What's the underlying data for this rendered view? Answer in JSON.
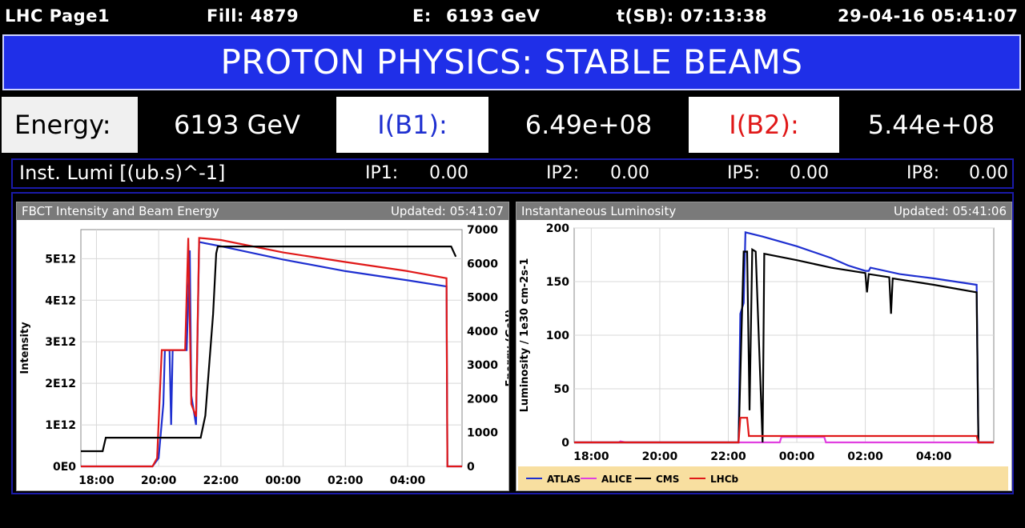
{
  "header": {
    "page": "LHC Page1",
    "fill": "Fill: 4879",
    "energy_label": "E:",
    "energy_value": "6193 GeV",
    "tsb": "t(SB): 07:13:38",
    "datetime": "29-04-16 05:41:07"
  },
  "banner": {
    "text": "PROTON PHYSICS: STABLE BEAMS"
  },
  "beam_row": {
    "energy_label": "Energy:",
    "energy_value": "6193 GeV",
    "ib1_label": "I(B1):",
    "ib1_value": "6.49e+08",
    "ib2_label": "I(B2):",
    "ib2_value": "5.44e+08"
  },
  "lumi_row": {
    "label": "Inst. Lumi [(ub.s)^-1]",
    "ip1_label": "IP1:",
    "ip1_value": "0.00",
    "ip2_label": "IP2:",
    "ip2_value": "0.00",
    "ip5_label": "IP5:",
    "ip5_value": "0.00",
    "ip8_label": "IP8:",
    "ip8_value": "0.00"
  },
  "colors": {
    "b1": "#1e2fd0",
    "b2": "#e01818",
    "energy": "#000000",
    "atlas": "#1e2fd0",
    "alice": "#e040e0",
    "cms": "#000000",
    "lhcb": "#e01818",
    "banner": "#1f2fe8",
    "legend_bg": "#f8dfa0"
  },
  "chart_data": [
    {
      "type": "line",
      "panel_title": "FBCT Intensity and Beam Energy",
      "updated": "Updated: 05:41:07",
      "ylabel": "Intensity",
      "y2label": "Energy (GeV)",
      "x_ticks": [
        "18:00",
        "20:00",
        "22:00",
        "00:00",
        "02:00",
        "04:00"
      ],
      "x_tick_hours": [
        18,
        20,
        22,
        24,
        26,
        28
      ],
      "xlim_hours": [
        17.5,
        29.75
      ],
      "y_ticks": [
        "0E0",
        "1E12",
        "2E12",
        "3E12",
        "4E12",
        "5E12"
      ],
      "ylim": [
        0,
        5700000000000.0
      ],
      "y2_ticks": [
        "0",
        "1000",
        "2000",
        "3000",
        "4000",
        "5000",
        "6000",
        "7000"
      ],
      "y2lim": [
        0,
        7000
      ],
      "series": [
        {
          "name": "B1",
          "axis": "left",
          "points": [
            [
              17.5,
              0
            ],
            [
              19.8,
              0
            ],
            [
              20.0,
              200000000000.0
            ],
            [
              20.15,
              1500000000000.0
            ],
            [
              20.2,
              2800000000000.0
            ],
            [
              20.35,
              2800000000000.0
            ],
            [
              20.4,
              1000000000000.0
            ],
            [
              20.45,
              2800000000000.0
            ],
            [
              20.9,
              2800000000000.0
            ],
            [
              21.0,
              5200000000000.0
            ],
            [
              21.05,
              1700000000000.0
            ],
            [
              21.2,
              1000000000000.0
            ],
            [
              21.3,
              5400000000000.0
            ],
            [
              22.0,
              5300000000000.0
            ],
            [
              24.0,
              4980000000000.0
            ],
            [
              26.0,
              4700000000000.0
            ],
            [
              28.0,
              4480000000000.0
            ],
            [
              29.25,
              4330000000000.0
            ],
            [
              29.28,
              0
            ],
            [
              29.75,
              0
            ]
          ]
        },
        {
          "name": "B2",
          "axis": "left",
          "points": [
            [
              17.5,
              0
            ],
            [
              19.8,
              0
            ],
            [
              19.95,
              200000000000.0
            ],
            [
              20.1,
              2800000000000.0
            ],
            [
              20.85,
              2800000000000.0
            ],
            [
              20.95,
              5500000000000.0
            ],
            [
              21.05,
              1500000000000.0
            ],
            [
              21.2,
              1200000000000.0
            ],
            [
              21.3,
              5500000000000.0
            ],
            [
              22.0,
              5450000000000.0
            ],
            [
              24.0,
              5150000000000.0
            ],
            [
              26.0,
              4920000000000.0
            ],
            [
              28.0,
              4700000000000.0
            ],
            [
              29.25,
              4530000000000.0
            ],
            [
              29.28,
              0
            ],
            [
              29.75,
              0
            ]
          ]
        },
        {
          "name": "Energy",
          "axis": "right",
          "points": [
            [
              17.5,
              450
            ],
            [
              18.2,
              450
            ],
            [
              18.3,
              850
            ],
            [
              21.35,
              850
            ],
            [
              21.5,
              1500
            ],
            [
              21.75,
              4500
            ],
            [
              21.85,
              6300
            ],
            [
              21.9,
              6500
            ],
            [
              29.4,
              6500
            ],
            [
              29.55,
              6200
            ]
          ]
        }
      ]
    },
    {
      "type": "line",
      "panel_title": "Instantaneous Luminosity",
      "updated": "Updated: 05:41:06",
      "ylabel": "Luminosity / 1e30 cm-2s-1",
      "x_ticks": [
        "18:00",
        "20:00",
        "22:00",
        "00:00",
        "02:00",
        "04:00"
      ],
      "x_tick_hours": [
        18,
        20,
        22,
        24,
        26,
        28
      ],
      "xlim_hours": [
        17.5,
        29.75
      ],
      "y_ticks": [
        "0",
        "50",
        "100",
        "150",
        "200"
      ],
      "ylim": [
        0,
        200
      ],
      "legend": [
        "ATLAS",
        "ALICE",
        "CMS",
        "LHCb"
      ],
      "series": [
        {
          "name": "ATLAS",
          "points": [
            [
              17.5,
              0
            ],
            [
              22.3,
              0
            ],
            [
              22.35,
              120
            ],
            [
              22.45,
              130
            ],
            [
              22.5,
              196
            ],
            [
              23.0,
              192
            ],
            [
              24.0,
              183
            ],
            [
              25.0,
              172
            ],
            [
              25.5,
              165
            ],
            [
              26.0,
              160
            ],
            [
              26.1,
              160
            ],
            [
              26.15,
              163
            ],
            [
              27.0,
              157
            ],
            [
              28.0,
              153
            ],
            [
              29.25,
              147
            ],
            [
              29.3,
              0
            ],
            [
              29.75,
              0
            ]
          ]
        },
        {
          "name": "ALICE",
          "points": [
            [
              17.5,
              0
            ],
            [
              18.8,
              0
            ],
            [
              18.85,
              1
            ],
            [
              19.0,
              0
            ],
            [
              23.5,
              0
            ],
            [
              23.55,
              5
            ],
            [
              24.8,
              5
            ],
            [
              24.85,
              0
            ],
            [
              29.75,
              0
            ]
          ]
        },
        {
          "name": "CMS",
          "points": [
            [
              17.5,
              0
            ],
            [
              22.3,
              0
            ],
            [
              22.38,
              95
            ],
            [
              22.45,
              178
            ],
            [
              22.55,
              178
            ],
            [
              22.62,
              30
            ],
            [
              22.7,
              180
            ],
            [
              22.8,
              178
            ],
            [
              23.0,
              0
            ],
            [
              23.05,
              176
            ],
            [
              24.0,
              170
            ],
            [
              25.0,
              163
            ],
            [
              26.0,
              158
            ],
            [
              26.05,
              140
            ],
            [
              26.1,
              157
            ],
            [
              26.7,
              154
            ],
            [
              26.75,
              120
            ],
            [
              26.8,
              153
            ],
            [
              28.0,
              147
            ],
            [
              29.25,
              140
            ],
            [
              29.3,
              0
            ],
            [
              29.75,
              0
            ]
          ]
        },
        {
          "name": "LHCb",
          "points": [
            [
              17.5,
              0
            ],
            [
              22.3,
              0
            ],
            [
              22.35,
              23
            ],
            [
              22.55,
              23
            ],
            [
              22.6,
              6
            ],
            [
              29.25,
              6
            ],
            [
              29.3,
              0
            ],
            [
              29.75,
              0
            ]
          ]
        }
      ]
    }
  ]
}
